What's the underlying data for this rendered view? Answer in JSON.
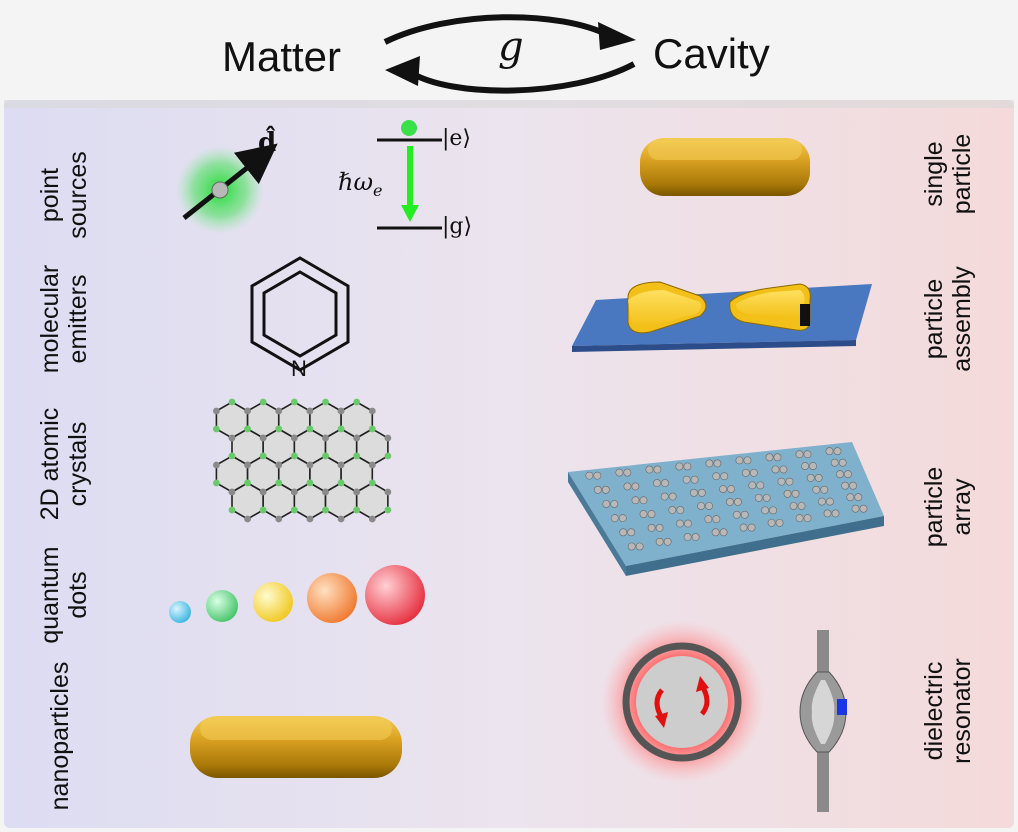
{
  "header": {
    "left": "Matter",
    "right": "Cavity",
    "coupling": "g"
  },
  "matter_labels": [
    [
      "point",
      "sources"
    ],
    [
      "molecular",
      "emitters"
    ],
    [
      "2D atomic",
      "crystals"
    ],
    [
      "quantum",
      "dots"
    ],
    [
      "nanoparticles"
    ]
  ],
  "cavity_labels": [
    [
      "single",
      "particle"
    ],
    [
      "particle",
      "assembly"
    ],
    [
      "particle",
      "array"
    ],
    [
      "dielectric",
      "resonator"
    ]
  ],
  "dipole_symbol": "d̂",
  "levels": {
    "excited": "|e⟩",
    "ground": "|g⟩",
    "energy": "ℏω",
    "energy_sub": "e"
  },
  "molecule_atom": "N",
  "colors": {
    "matter_bg": "#dcdcf2",
    "cavity_bg": "#f4dada",
    "gold": "#d8a21a",
    "substrate_blue": "#4a78c0",
    "array_blue": "#5b94b8",
    "emitter_green": "#22dd33",
    "resonator_glow": "#ff6060",
    "qd_colors": [
      "#3bb5e0",
      "#46c46a",
      "#f0d020",
      "#f08a30",
      "#e83040"
    ]
  }
}
